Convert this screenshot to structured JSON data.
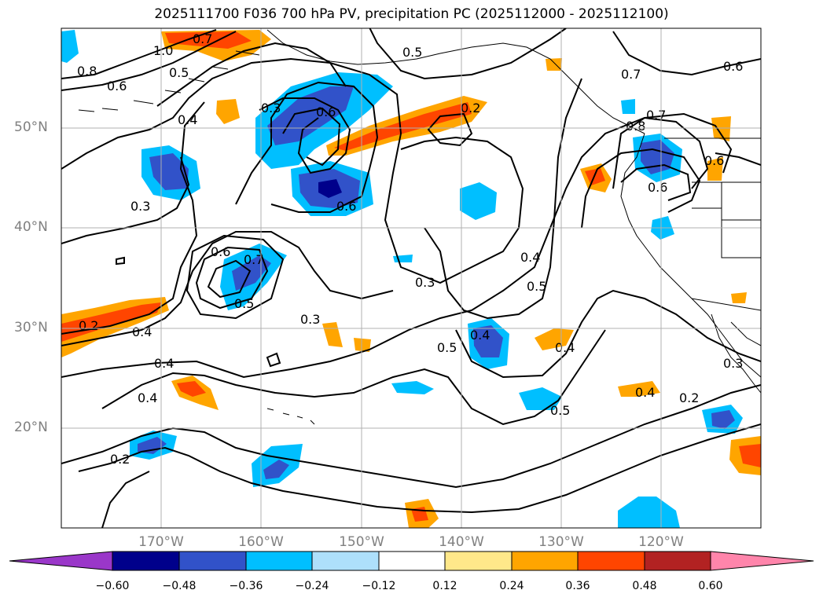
{
  "title": "2025111700 F036 700 hPa PV, precipitation PC (2025112000 - 2025112100)",
  "map": {
    "lat_labels": [
      "50°N",
      "40°N",
      "30°N",
      "20°N"
    ],
    "lon_labels": [
      "170°W",
      "160°W",
      "150°W",
      "140°W",
      "130°W",
      "120°W"
    ]
  },
  "contour_labels": [
    "0.8",
    "0.6",
    "0.5",
    "1.0",
    "0.7",
    "0.4",
    "0.3",
    "0.6",
    "0.2",
    "0.5",
    "0.6",
    "0.7",
    "0.8",
    "0.6",
    "0.3",
    "0.6",
    "0.7",
    "0.5",
    "0.3",
    "0.4",
    "0.5",
    "0.3",
    "0.4",
    "0.5",
    "0.4",
    "0.2",
    "0.4",
    "0.4",
    "0.4",
    "0.2",
    "0.5",
    "0.4",
    "0.2",
    "0.3",
    "0.7",
    "0.6",
    "0.6"
  ],
  "colorbar": {
    "ticks": [
      "−0.60",
      "−0.48",
      "−0.36",
      "−0.24",
      "−0.12",
      "0.12",
      "0.24",
      "0.36",
      "0.48",
      "0.60"
    ],
    "colors": [
      "#9a37c9",
      "#00008b",
      "#3152c9",
      "#00bfff",
      "#aee0fb",
      "#ffffff",
      "#ffe88a",
      "#ffa500",
      "#ff4500",
      "#b22222",
      "#ff85ab"
    ]
  }
}
